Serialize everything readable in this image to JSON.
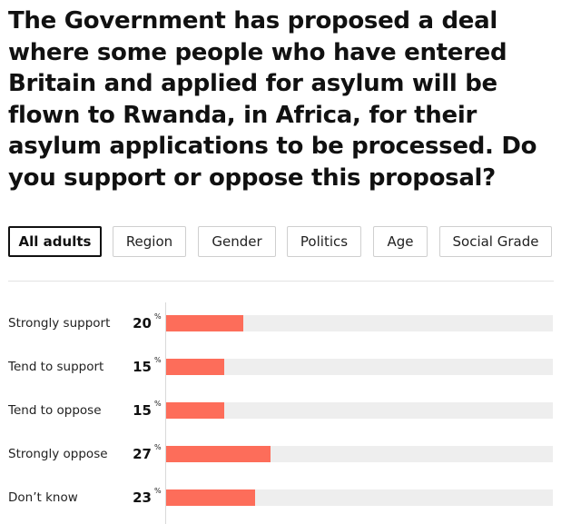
{
  "question": "The Government has proposed a deal where some people who have entered Britain and applied for asylum will be flown to Rwanda, in Africa, for their asylum applications to be processed. Do you support or oppose this proposal?",
  "tabs": [
    {
      "label": "All adults",
      "active": true
    },
    {
      "label": "Region",
      "active": false
    },
    {
      "label": "Gender",
      "active": false
    },
    {
      "label": "Politics",
      "active": false
    },
    {
      "label": "Age",
      "active": false
    },
    {
      "label": "Social Grade",
      "active": false
    }
  ],
  "colors": {
    "bar": "#fd6d5a",
    "track": "#eeeeee"
  },
  "chart_data": {
    "type": "bar",
    "orientation": "horizontal",
    "unit": "%",
    "categories": [
      "Strongly support",
      "Tend to support",
      "Tend to oppose",
      "Strongly oppose",
      "Don’t know"
    ],
    "values": [
      20,
      15,
      15,
      27,
      23
    ],
    "xlim": [
      0,
      100
    ],
    "grid": false,
    "legend": "none"
  }
}
